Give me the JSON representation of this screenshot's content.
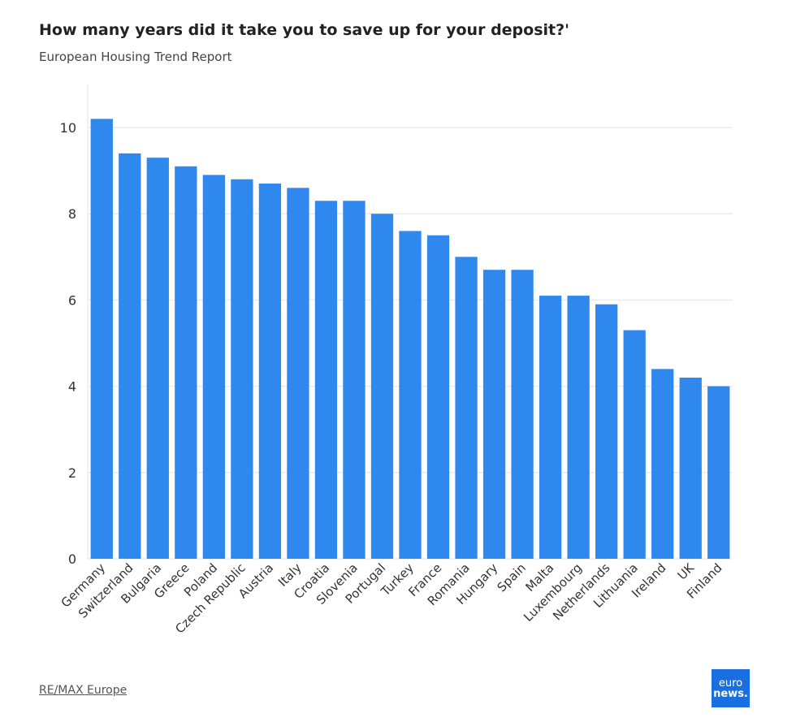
{
  "chart_data": {
    "type": "bar",
    "title": "How many years did it take you to save up for your deposit?'",
    "subtitle": "European Housing Trend Report",
    "categories": [
      "Germany",
      "Switzerland",
      "Bulgaria",
      "Greece",
      "Poland",
      "Czech Republic",
      "Austria",
      "Italy",
      "Croatia",
      "Slovenia",
      "Portugal",
      "Turkey",
      "France",
      "Romania",
      "Hungary",
      "Spain",
      "Malta",
      "Luxembourg",
      "Netherlands",
      "Lithuania",
      "Ireland",
      "UK",
      "Finland"
    ],
    "values": [
      10.2,
      9.4,
      9.3,
      9.1,
      8.9,
      8.8,
      8.7,
      8.6,
      8.3,
      8.3,
      8.0,
      7.6,
      7.5,
      7.0,
      6.7,
      6.7,
      6.1,
      6.1,
      5.9,
      5.3,
      4.4,
      4.2,
      4.0
    ],
    "yticks": [
      "0",
      "2",
      "4",
      "6",
      "8",
      "10"
    ],
    "ylim": [
      0,
      11
    ],
    "grid": true,
    "bar_color": "#2e88ee",
    "xlabel": "",
    "ylabel": ""
  },
  "source": "RE/MAX Europe",
  "logo": {
    "line1": "euro",
    "line2": "news."
  }
}
